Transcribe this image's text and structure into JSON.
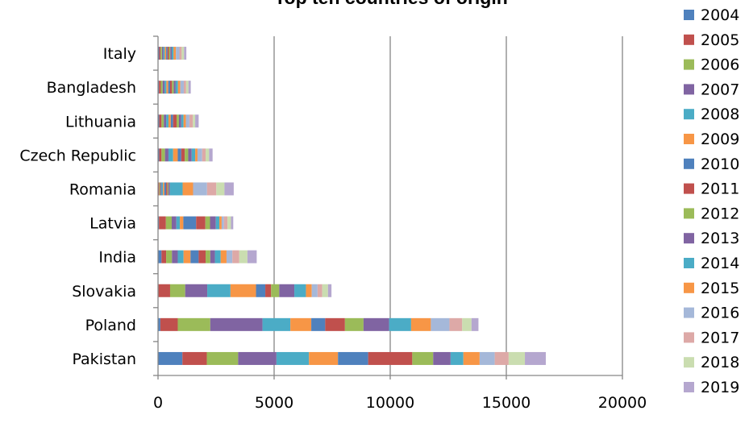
{
  "chart_data": {
    "type": "bar",
    "orientation": "horizontal",
    "stacked": true,
    "title": "Top ten countries of origin",
    "xlabel": "",
    "ylabel": "",
    "xlim": [
      0,
      20000
    ],
    "xticks": [
      0,
      5000,
      10000,
      15000,
      20000
    ],
    "grid": true,
    "legend_position": "right",
    "categories": [
      "Pakistan",
      "Poland",
      "Slovakia",
      "India",
      "Latvia",
      "Romania",
      "Czech Republic",
      "Lithuania",
      "Bangladesh",
      "Italy"
    ],
    "series": [
      {
        "name": "2004",
        "color": "#4F81BD",
        "values": [
          1050,
          100,
          20,
          150,
          40,
          20,
          50,
          50,
          40,
          50
        ]
      },
      {
        "name": "2005",
        "color": "#C0504D",
        "values": [
          1050,
          750,
          500,
          200,
          300,
          40,
          100,
          100,
          80,
          60
        ]
      },
      {
        "name": "2006",
        "color": "#9BBB59",
        "values": [
          1350,
          1400,
          650,
          250,
          250,
          40,
          150,
          100,
          80,
          60
        ]
      },
      {
        "name": "2007",
        "color": "#8064A2",
        "values": [
          1650,
          2250,
          950,
          250,
          200,
          50,
          150,
          100,
          80,
          60
        ]
      },
      {
        "name": "2008",
        "color": "#4BACC6",
        "values": [
          1400,
          1200,
          1000,
          250,
          150,
          60,
          200,
          100,
          80,
          60
        ]
      },
      {
        "name": "2009",
        "color": "#F79646",
        "values": [
          1250,
          900,
          1100,
          300,
          150,
          60,
          200,
          100,
          80,
          60
        ]
      },
      {
        "name": "2010",
        "color": "#4F81BD",
        "values": [
          1300,
          600,
          400,
          350,
          550,
          80,
          150,
          100,
          80,
          60
        ]
      },
      {
        "name": "2011",
        "color": "#C0504D",
        "values": [
          1900,
          850,
          250,
          300,
          400,
          60,
          150,
          150,
          80,
          60
        ]
      },
      {
        "name": "2012",
        "color": "#9BBB59",
        "values": [
          900,
          800,
          350,
          200,
          200,
          40,
          150,
          100,
          80,
          60
        ]
      },
      {
        "name": "2013",
        "color": "#8064A2",
        "values": [
          750,
          1100,
          650,
          200,
          250,
          60,
          150,
          100,
          80,
          60
        ]
      },
      {
        "name": "2014",
        "color": "#4BACC6",
        "values": [
          550,
          950,
          500,
          250,
          150,
          550,
          150,
          100,
          100,
          80
        ]
      },
      {
        "name": "2015",
        "color": "#F79646",
        "values": [
          700,
          850,
          250,
          250,
          100,
          450,
          100,
          100,
          100,
          100
        ]
      },
      {
        "name": "2016",
        "color": "#A5B8D9",
        "values": [
          650,
          800,
          250,
          250,
          100,
          600,
          200,
          150,
          150,
          150
        ]
      },
      {
        "name": "2017",
        "color": "#DDA9A7",
        "values": [
          600,
          550,
          200,
          300,
          150,
          400,
          150,
          150,
          100,
          100
        ]
      },
      {
        "name": "2018",
        "color": "#CADDB0",
        "values": [
          700,
          400,
          250,
          350,
          150,
          350,
          150,
          100,
          100,
          100
        ]
      },
      {
        "name": "2019",
        "color": "#B5A7CF",
        "values": [
          900,
          300,
          150,
          400,
          100,
          400,
          150,
          150,
          100,
          100
        ]
      }
    ]
  }
}
